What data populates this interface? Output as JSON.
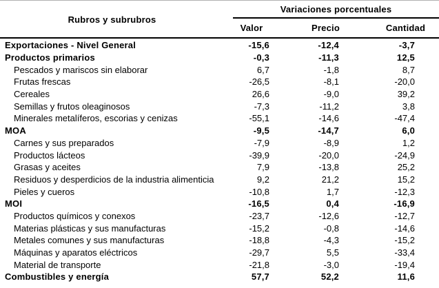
{
  "page": {
    "background_color": "#ffffff",
    "text_color": "#000000",
    "rule_color": "#000000",
    "top_edge_color": "#b0b0b0"
  },
  "table": {
    "row_header": "Rubros y subrubros",
    "column_group_header": "Variaciones porcentuales",
    "columns": [
      "Valor",
      "Precio",
      "Cantidad"
    ],
    "rows": [
      {
        "label": "Exportaciones - Nivel General",
        "bold": true,
        "valor": "-15,6",
        "precio": "-12,4",
        "cantidad": "-3,7"
      },
      {
        "label": "Productos primarios",
        "bold": true,
        "valor": "-0,3",
        "precio": "-11,3",
        "cantidad": "12,5"
      },
      {
        "label": "Pescados y mariscos sin elaborar",
        "bold": false,
        "valor": "6,7",
        "precio": "-1,8",
        "cantidad": "8,7"
      },
      {
        "label": "Frutas frescas",
        "bold": false,
        "valor": "-26,5",
        "precio": "-8,1",
        "cantidad": "-20,0"
      },
      {
        "label": "Cereales",
        "bold": false,
        "valor": "26,6",
        "precio": "-9,0",
        "cantidad": "39,2"
      },
      {
        "label": "Semillas y frutos oleaginosos",
        "bold": false,
        "valor": "-7,3",
        "precio": "-11,2",
        "cantidad": "3,8"
      },
      {
        "label": "Minerales metalíferos, escorias y cenizas",
        "bold": false,
        "valor": "-55,1",
        "precio": "-14,6",
        "cantidad": "-47,4"
      },
      {
        "label": "MOA",
        "bold": true,
        "valor": "-9,5",
        "precio": "-14,7",
        "cantidad": "6,0"
      },
      {
        "label": "Carnes y sus preparados",
        "bold": false,
        "valor": "-7,9",
        "precio": "-8,9",
        "cantidad": "1,2"
      },
      {
        "label": "Productos lácteos",
        "bold": false,
        "valor": "-39,9",
        "precio": "-20,0",
        "cantidad": "-24,9"
      },
      {
        "label": "Grasas y aceites",
        "bold": false,
        "valor": "7,9",
        "precio": "-13,8",
        "cantidad": "25,2"
      },
      {
        "label": "Residuos y desperdicios de la industria alimenticia",
        "bold": false,
        "valor": "9,2",
        "precio": "21,2",
        "cantidad": "15,2"
      },
      {
        "label": "Pieles y cueros",
        "bold": false,
        "valor": "-10,8",
        "precio": "1,7",
        "cantidad": "-12,3"
      },
      {
        "label": "MOI",
        "bold": true,
        "valor": "-16,5",
        "precio": "0,4",
        "cantidad": "-16,9"
      },
      {
        "label": "Productos químicos y conexos",
        "bold": false,
        "valor": "-23,7",
        "precio": "-12,6",
        "cantidad": "-12,7"
      },
      {
        "label": "Materias plásticas y sus manufacturas",
        "bold": false,
        "valor": "-15,2",
        "precio": "-0,8",
        "cantidad": "-14,6"
      },
      {
        "label": "Metales comunes y sus manufacturas",
        "bold": false,
        "valor": "-18,8",
        "precio": "-4,3",
        "cantidad": "-15,2"
      },
      {
        "label": "Máquinas y aparatos eléctricos",
        "bold": false,
        "valor": "-29,7",
        "precio": "5,5",
        "cantidad": "-33,4"
      },
      {
        "label": "Material de transporte",
        "bold": false,
        "valor": "-21,8",
        "precio": "-3,0",
        "cantidad": "-19,4"
      },
      {
        "label": "Combustibles y energía",
        "bold": true,
        "valor": "57,7",
        "precio": "52,2",
        "cantidad": "11,6"
      }
    ]
  }
}
